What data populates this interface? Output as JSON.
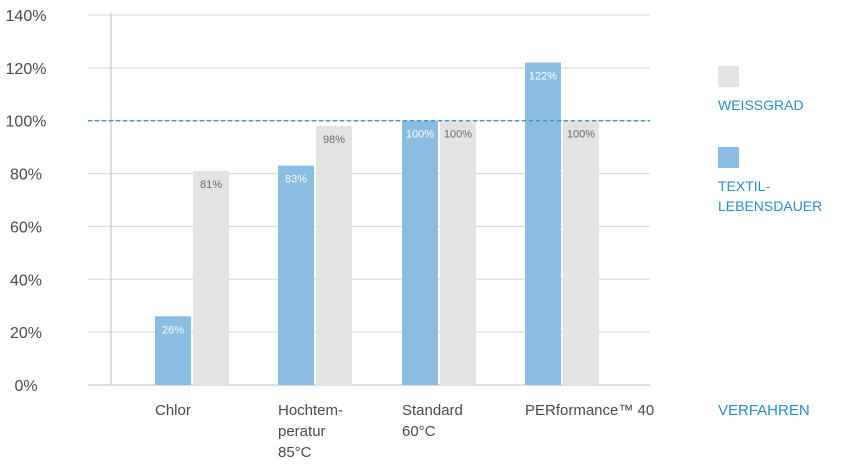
{
  "chart_data": {
    "type": "bar",
    "categories": [
      [
        "Chlor"
      ],
      [
        "Hochtem-",
        "peratur",
        "85°C"
      ],
      [
        "Standard",
        "60°C"
      ],
      [
        "PERformance™ 40"
      ]
    ],
    "series": [
      {
        "name": "TEXTIL-LEBENSDAUER",
        "legend_lines": [
          "TEXTIL-",
          "LEBENSDAUER"
        ],
        "color": "#8bbde3",
        "label_color": "#ffffff",
        "values": [
          26,
          83,
          100,
          122
        ],
        "labels": [
          "26%",
          "83%",
          "100%",
          "122%"
        ]
      },
      {
        "name": "WEISSGRAD",
        "legend_lines": [
          "WEISSGRAD"
        ],
        "color": "#e3e3e3",
        "label_color": "#6a6a6a",
        "values": [
          81,
          98,
          100,
          100
        ],
        "labels": [
          "81%",
          "98%",
          "100%",
          "100%"
        ]
      }
    ],
    "legend_order": [
      1,
      0
    ],
    "y_ticks": [
      0,
      20,
      40,
      60,
      80,
      100,
      120,
      140
    ],
    "y_tick_labels": [
      "0%",
      "20%",
      "40%",
      "60%",
      "80%",
      "100%",
      "120%",
      "140%"
    ],
    "ylim": [
      0,
      140
    ],
    "xlabel": "VERFAHREN",
    "reference_line": {
      "value": 100,
      "style": "dashed",
      "color": "#2a8cc6"
    },
    "grid": "horizontal",
    "legend_position": "right"
  }
}
